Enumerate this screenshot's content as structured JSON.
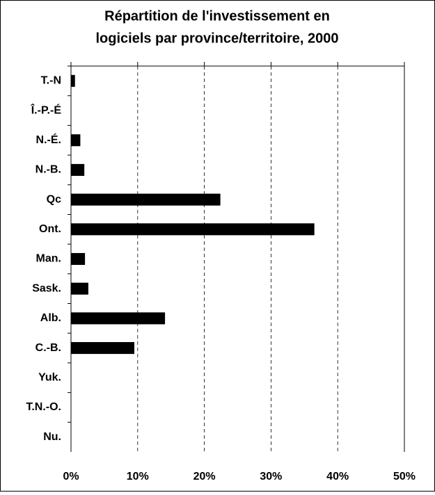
{
  "chart_data": {
    "type": "bar",
    "orientation": "horizontal",
    "title": [
      "Répartition de l'investissement en",
      "logiciels par province/territoire, 2000"
    ],
    "categories": [
      "T.-N",
      "Î.-P.-É",
      "N.-É.",
      "N.-B.",
      "Qc",
      "Ont.",
      "Man.",
      "Sask.",
      "Alb.",
      "C.-B.",
      "Yuk.",
      "T.N.-O.",
      "Nu."
    ],
    "values": [
      0.6,
      0,
      1.4,
      2.0,
      22.4,
      36.5,
      2.1,
      2.6,
      14.1,
      9.5,
      0,
      0,
      0
    ],
    "color": "#000000",
    "xlim": [
      0,
      50
    ],
    "xticks": [
      {
        "value": 0,
        "label": "0%"
      },
      {
        "value": 10,
        "label": "10%"
      },
      {
        "value": 20,
        "label": "20%"
      },
      {
        "value": 30,
        "label": "30%"
      },
      {
        "value": 40,
        "label": "40%"
      },
      {
        "value": 50,
        "label": "50%"
      }
    ],
    "grid": true
  }
}
